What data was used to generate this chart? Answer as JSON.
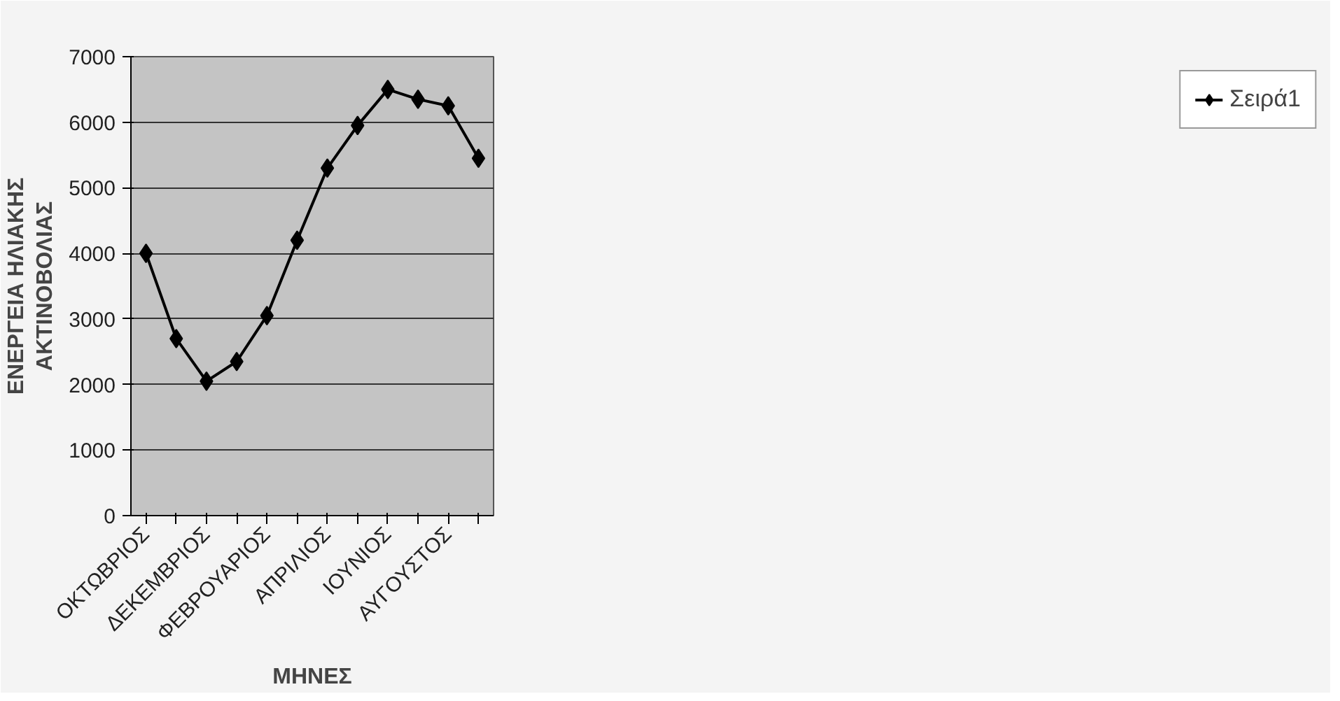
{
  "chart_data": {
    "type": "line",
    "xlabel": "ΜΗΝΕΣ",
    "ylabel": "ΕΝΕΡΓΕΙΑ ΗΛΙΑΚΗΣ\nΑΚΤΙΝΟΒΟΛΙΑΣ",
    "categories": [
      "ΟΚΤΩΒΡΙΟΣ",
      null,
      "ΔΕΚΕΜΒΡΙΟΣ",
      null,
      "ΦΕΒΡΟΥΑΡΙΟΣ",
      null,
      "ΑΠΡΙΛΙΟΣ",
      null,
      "ΙΟΥΝΙΟΣ",
      null,
      "ΑΥΓΟΥΣΤΟΣ",
      null
    ],
    "series": [
      {
        "name": "Σειρά1",
        "color": "#000000",
        "values": [
          4000,
          2700,
          2050,
          2350,
          3050,
          4200,
          5300,
          5950,
          6500,
          6350,
          6250,
          5450
        ]
      }
    ],
    "ylim": [
      0,
      7000
    ],
    "yticks": [
      0,
      1000,
      2000,
      3000,
      4000,
      5000,
      6000,
      7000
    ],
    "grid": "y",
    "legend": "right",
    "marker": "diamond",
    "line_style": "solid"
  }
}
